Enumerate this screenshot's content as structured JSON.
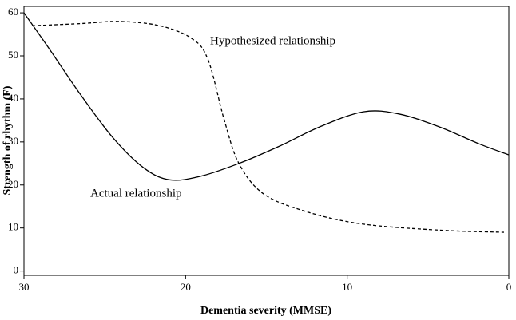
{
  "chart_data": {
    "type": "line",
    "x_label": "Dementia severity (MMSE)",
    "y_label": "Strength of rhythm (F)",
    "xlim": [
      30,
      0
    ],
    "xticks": [
      30,
      20,
      10,
      0
    ],
    "ylim": [
      -1,
      61.5
    ],
    "yticks": [
      0,
      10,
      20,
      30,
      40,
      50,
      60
    ],
    "series": [
      {
        "name": "Actual relationship",
        "color": "#000000",
        "dash": false,
        "x": [
          30,
          28.5,
          26.5,
          24.5,
          22.6,
          21.0,
          19.1,
          16.7,
          14.2,
          11.7,
          9.0,
          6.8,
          4.3,
          1.8,
          0
        ],
        "values": [
          60,
          52,
          41,
          31,
          24,
          21.2,
          22,
          25,
          29,
          33.5,
          37,
          36.5,
          33.5,
          29.5,
          27
        ]
      },
      {
        "name": "Hypothesized relationship",
        "color": "#000000",
        "dash": true,
        "x": [
          29.5,
          26.5,
          24.1,
          21.6,
          19.6,
          18.6,
          17.6,
          16.7,
          15.2,
          12.7,
          9.2,
          4.3,
          0.3
        ],
        "values": [
          57,
          57.5,
          58,
          57,
          54,
          49,
          35,
          25,
          18,
          14,
          11,
          9.5,
          9
        ]
      }
    ]
  }
}
